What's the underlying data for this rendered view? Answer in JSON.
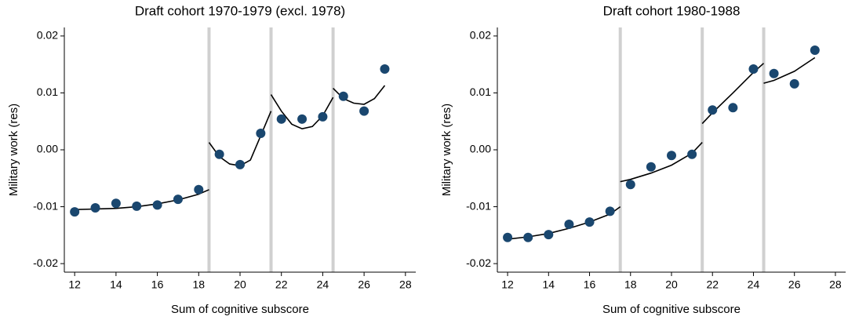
{
  "chart_data": [
    {
      "type": "scatter",
      "title": "Draft cohort 1970-1979 (excl. 1978)",
      "xlabel": "Sum of cognitive subscore",
      "ylabel": "Military work (res)",
      "x": [
        12,
        13,
        14,
        15,
        16,
        17,
        18,
        19,
        20,
        21,
        22,
        23,
        24,
        25,
        26,
        27
      ],
      "values": [
        -0.0109,
        -0.0102,
        -0.0094,
        -0.0099,
        -0.0097,
        -0.0087,
        -0.007,
        -0.0008,
        -0.0026,
        0.0029,
        0.0054,
        0.0054,
        0.0058,
        0.0094,
        0.0068,
        0.0142
      ],
      "color": "#1a476f",
      "fit": {
        "x": [
          12,
          13,
          14,
          15,
          16,
          17,
          18,
          18.5,
          null,
          18.5,
          19,
          19.5,
          20,
          20.5,
          21,
          21.5,
          null,
          21.5,
          22,
          22.5,
          23,
          23.5,
          24,
          24.5,
          null,
          24.5,
          25,
          25.5,
          26,
          26.5,
          27
        ],
        "values": [
          -0.0105,
          -0.0104,
          -0.0103,
          -0.01,
          -0.0095,
          -0.0088,
          -0.0078,
          -0.007,
          null,
          0.0013,
          -0.0012,
          -0.0025,
          -0.0028,
          -0.0018,
          0.0025,
          0.0068,
          null,
          0.0097,
          0.0068,
          0.0045,
          0.0037,
          0.0041,
          0.006,
          0.0092,
          null,
          0.0108,
          0.009,
          0.0082,
          0.008,
          0.009,
          0.0113
        ],
        "color": "#000000"
      },
      "cutoffs": [
        18.5,
        21.5,
        24.5
      ],
      "cutoff_color": "#d0d0d0",
      "xlim": [
        11.5,
        28.5
      ],
      "xticks": [
        12,
        14,
        16,
        18,
        20,
        22,
        24,
        26,
        28
      ],
      "ylim": [
        -0.0215,
        0.0215
      ],
      "yticks": [
        -0.02,
        -0.01,
        {
          "value": 0,
          "label": "0.00"
        },
        0.01,
        0.02
      ]
    },
    {
      "type": "scatter",
      "title": "Draft cohort 1980-1988",
      "xlabel": "Sum of cognitive subscore",
      "ylabel": "Military work (res)",
      "x": [
        12,
        13,
        14,
        15,
        16,
        17,
        18,
        19,
        20,
        21,
        22,
        23,
        24,
        25,
        26,
        27
      ],
      "values": [
        -0.0154,
        -0.0154,
        -0.0149,
        -0.0131,
        -0.0127,
        -0.0108,
        -0.0061,
        -0.003,
        -0.001,
        -0.0008,
        0.007,
        0.0074,
        0.0142,
        0.0134,
        0.0116,
        0.0175
      ],
      "color": "#1a476f",
      "fit": {
        "x": [
          12,
          13,
          14,
          15,
          16,
          17,
          17.5,
          null,
          17.5,
          18,
          19,
          20,
          21,
          21.5,
          null,
          21.5,
          22,
          23,
          24,
          24.5,
          null,
          24.5,
          25,
          26,
          27
        ],
        "values": [
          -0.0157,
          -0.0153,
          -0.0147,
          -0.0138,
          -0.0127,
          -0.0113,
          -0.01,
          null,
          -0.0056,
          -0.0052,
          -0.0041,
          -0.0027,
          -0.0006,
          0.0013,
          null,
          0.0046,
          0.0065,
          0.01,
          0.0136,
          0.0152,
          null,
          0.0117,
          0.0122,
          0.0138,
          0.0162
        ],
        "color": "#000000"
      },
      "cutoffs": [
        17.5,
        21.5,
        24.5
      ],
      "cutoff_color": "#d0d0d0",
      "xlim": [
        11.5,
        28.5
      ],
      "xticks": [
        12,
        14,
        16,
        18,
        20,
        22,
        24,
        26,
        28
      ],
      "ylim": [
        -0.0215,
        0.0215
      ],
      "yticks": [
        -0.02,
        -0.01,
        {
          "value": 0,
          "label": "0.00"
        },
        0.01,
        0.02
      ]
    }
  ]
}
